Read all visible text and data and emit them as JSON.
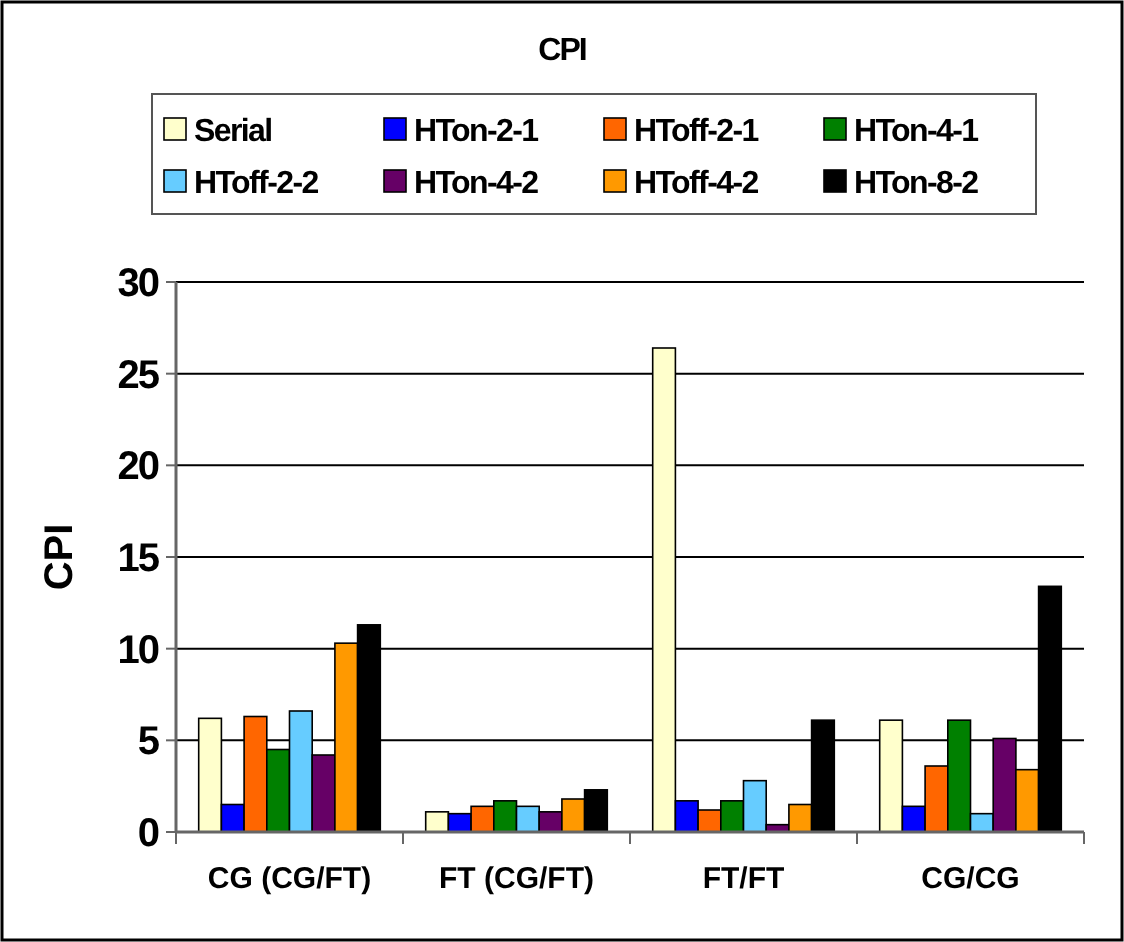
{
  "chart_data": {
    "type": "bar",
    "title": "CPI",
    "ylabel": "CPI",
    "categories": [
      "CG (CG/FT)",
      "FT (CG/FT)",
      "FT/FT",
      "CG/CG"
    ],
    "series": [
      {
        "name": "Serial",
        "color": "#ffffcc",
        "values": [
          6.2,
          1.1,
          26.4,
          6.1
        ]
      },
      {
        "name": "HTon-2-1",
        "color": "#0000ff",
        "values": [
          1.5,
          1,
          1.7,
          1.4
        ]
      },
      {
        "name": "HToff-2-1",
        "color": "#ff6600",
        "values": [
          6.3,
          1.4,
          1.2,
          3.6
        ]
      },
      {
        "name": "HTon-4-1",
        "color": "#008000",
        "values": [
          4.5,
          1.7,
          1.7,
          6.1
        ]
      },
      {
        "name": "HToff-2-2",
        "color": "#66ccff",
        "values": [
          6.6,
          1.4,
          2.8,
          1
        ]
      },
      {
        "name": "HTon-4-2",
        "color": "#660066",
        "values": [
          4.2,
          1.1,
          0.4,
          5.1
        ]
      },
      {
        "name": "HToff-4-2",
        "color": "#ff9900",
        "values": [
          10.3,
          1.8,
          1.5,
          3.4
        ]
      },
      {
        "name": "HTon-8-2",
        "color": "#000000",
        "values": [
          11.3,
          2.3,
          6.1,
          13.4
        ]
      }
    ],
    "ylim": [
      0,
      30
    ],
    "yticks": [
      0,
      5,
      10,
      15,
      20,
      25,
      30
    ],
    "grid": "y",
    "legend": "top"
  }
}
